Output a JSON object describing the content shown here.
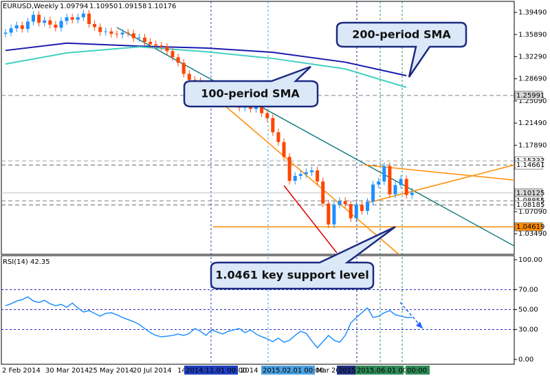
{
  "chart_data": [
    {
      "type": "candlestick",
      "title": "EURUSD,Weekly",
      "ohlc_labels": [
        "1.09794",
        "1.10950",
        "1.09158",
        "1.10176"
      ],
      "open": [
        1.36,
        1.362,
        1.369,
        1.374,
        1.368,
        1.38,
        1.391,
        1.378,
        1.382,
        1.375,
        1.37,
        1.381,
        1.387,
        1.383,
        1.387,
        1.393,
        1.376,
        1.371,
        1.363,
        1.364,
        1.36,
        1.359,
        1.362,
        1.361,
        1.353,
        1.354,
        1.347,
        1.343,
        1.341,
        1.339,
        1.332,
        1.322,
        1.313,
        1.295,
        1.285,
        1.283,
        1.262,
        1.267,
        1.276,
        1.269,
        1.268,
        1.251,
        1.253,
        1.24,
        1.244,
        1.238,
        1.247,
        1.231,
        1.223,
        1.2,
        1.184,
        1.16,
        1.121,
        1.129,
        1.132,
        1.135,
        1.138,
        1.12,
        1.084,
        1.05,
        1.082,
        1.088,
        1.083,
        1.06,
        1.082,
        1.072,
        1.087,
        1.115,
        1.12,
        1.145,
        1.099,
        1.114,
        1.124,
        1.09794
      ],
      "high": [
        1.368,
        1.375,
        1.38,
        1.38,
        1.386,
        1.397,
        1.397,
        1.388,
        1.388,
        1.381,
        1.387,
        1.393,
        1.393,
        1.393,
        1.399,
        1.399,
        1.382,
        1.377,
        1.37,
        1.37,
        1.366,
        1.368,
        1.368,
        1.367,
        1.36,
        1.36,
        1.353,
        1.349,
        1.347,
        1.345,
        1.338,
        1.328,
        1.319,
        1.301,
        1.291,
        1.289,
        1.273,
        1.282,
        1.282,
        1.275,
        1.274,
        1.259,
        1.259,
        1.25,
        1.25,
        1.253,
        1.253,
        1.237,
        1.229,
        1.206,
        1.19,
        1.166,
        1.135,
        1.138,
        1.141,
        1.144,
        1.144,
        1.126,
        1.09,
        1.088,
        1.094,
        1.094,
        1.089,
        1.088,
        1.088,
        1.093,
        1.121,
        1.126,
        1.151,
        1.151,
        1.12,
        1.13,
        1.13,
        1.1095
      ],
      "low": [
        1.354,
        1.356,
        1.363,
        1.362,
        1.362,
        1.374,
        1.372,
        1.372,
        1.369,
        1.364,
        1.364,
        1.375,
        1.377,
        1.377,
        1.381,
        1.37,
        1.365,
        1.357,
        1.357,
        1.354,
        1.353,
        1.353,
        1.355,
        1.347,
        1.347,
        1.341,
        1.337,
        1.335,
        1.333,
        1.326,
        1.316,
        1.307,
        1.289,
        1.279,
        1.277,
        1.256,
        1.256,
        1.261,
        1.263,
        1.262,
        1.245,
        1.245,
        1.234,
        1.234,
        1.232,
        1.232,
        1.225,
        1.217,
        1.194,
        1.178,
        1.154,
        1.115,
        1.115,
        1.123,
        1.126,
        1.129,
        1.114,
        1.078,
        1.044,
        1.044,
        1.076,
        1.077,
        1.054,
        1.054,
        1.066,
        1.066,
        1.081,
        1.109,
        1.114,
        1.093,
        1.093,
        1.108,
        1.092,
        1.09158
      ],
      "close": [
        1.362,
        1.369,
        1.374,
        1.368,
        1.38,
        1.391,
        1.378,
        1.382,
        1.375,
        1.37,
        1.381,
        1.387,
        1.383,
        1.387,
        1.393,
        1.376,
        1.371,
        1.363,
        1.364,
        1.36,
        1.359,
        1.362,
        1.361,
        1.353,
        1.354,
        1.347,
        1.343,
        1.341,
        1.339,
        1.332,
        1.322,
        1.313,
        1.295,
        1.285,
        1.283,
        1.262,
        1.267,
        1.276,
        1.269,
        1.268,
        1.251,
        1.253,
        1.24,
        1.244,
        1.238,
        1.247,
        1.231,
        1.223,
        1.2,
        1.184,
        1.16,
        1.121,
        1.129,
        1.132,
        1.135,
        1.138,
        1.12,
        1.084,
        1.05,
        1.082,
        1.088,
        1.083,
        1.06,
        1.082,
        1.072,
        1.087,
        1.115,
        1.12,
        1.145,
        1.099,
        1.114,
        1.124,
        1.098,
        1.10176
      ],
      "up_color": "#1e90ff",
      "down_color": "#ff4500",
      "ylim": [
        1.0015,
        1.4095
      ],
      "yticks": [
        {
          "value": 1.3949,
          "label": "1.39490"
        },
        {
          "value": 1.3589,
          "label": "1.35890"
        },
        {
          "value": 1.3229,
          "label": "1.32290"
        },
        {
          "value": 1.2869,
          "label": "1.28690"
        },
        {
          "value": 1.2509,
          "label": "1.25090"
        },
        {
          "value": 1.2149,
          "label": "1.21490"
        },
        {
          "value": 1.1789,
          "label": "1.17890"
        },
        {
          "value": 1.0709,
          "label": "1.07090"
        },
        {
          "value": 1.0349,
          "label": "1.03490"
        }
      ],
      "levels": [
        {
          "value": 1.25991,
          "color": "#808080",
          "label_fill": "#d8d8d8",
          "style": "dash"
        },
        {
          "value": 1.15332,
          "color": "#a0a0a0",
          "label_fill": "#ffffff",
          "style": "dash"
        },
        {
          "value": 1.14661,
          "color": "#606060",
          "label_fill": "#ffffff",
          "style": "dash"
        },
        {
          "value": 1.10125,
          "color": "#c0c0c0",
          "label_fill": "#d8d8d8",
          "style": "solid"
        },
        {
          "value": 1.08855,
          "color": "#808080",
          "label_fill": "#ffffff",
          "style": "dash"
        },
        {
          "value": 1.08185,
          "color": "#606060",
          "label_fill": "#ffffff",
          "style": "dash"
        },
        {
          "value": 1.04619,
          "color": "#ff8c00",
          "label_fill": "#ff8c00",
          "style": "solid"
        }
      ],
      "series": [
        {
          "name": "200-period SMA",
          "color": "#1a1ab0",
          "x": [
            0,
            11,
            24,
            36,
            48,
            61,
            72
          ],
          "values": [
            1.333,
            1.345,
            1.34,
            1.337,
            1.33,
            1.314,
            1.292
          ]
        },
        {
          "name": "100-period SMA",
          "color": "#40d0c0",
          "x": [
            0,
            11,
            24,
            36,
            48,
            61,
            72
          ],
          "values": [
            1.311,
            1.329,
            1.339,
            1.331,
            1.32,
            1.303,
            1.273
          ]
        }
      ],
      "annotation": "1.0461 key support level"
    },
    {
      "type": "line",
      "title": "RSI(14)",
      "color": "#1e90ff",
      "values": [
        53.8,
        55.9,
        58.6,
        60.0,
        62.8,
        58.6,
        57.2,
        59.3,
        55.9,
        53.8,
        55.2,
        52.4,
        56.6,
        51.7,
        47.6,
        49.0,
        46.2,
        43.4,
        46.2,
        46.9,
        44.8,
        42.1,
        40.0,
        37.9,
        35.2,
        31.0,
        26.9,
        24.1,
        22.8,
        23.4,
        24.1,
        25.5,
        24.1,
        26.2,
        31.0,
        28.3,
        24.1,
        29.7,
        27.6,
        25.5,
        28.3,
        29.7,
        31.0,
        26.9,
        29.7,
        25.5,
        22.8,
        20.7,
        17.9,
        21.4,
        17.2,
        19.3,
        24.1,
        28.3,
        26.2,
        18.6,
        11.7,
        17.9,
        24.1,
        19.3,
        17.2,
        24.1,
        36.6,
        42.1,
        46.9,
        51.7,
        42.1,
        43.4,
        46.9,
        49.0,
        44.8,
        43.4,
        42.1,
        42.35
      ],
      "ylim": [
        -4.8,
        104.1
      ],
      "yticks": [
        {
          "value": 100,
          "label": "100.00"
        },
        {
          "value": 70,
          "label": "70.00"
        },
        {
          "value": 50,
          "label": "50.00"
        },
        {
          "value": 30,
          "label": "30.00"
        },
        {
          "value": 0,
          "label": "0.00"
        }
      ],
      "levels": [
        70,
        50,
        30
      ],
      "x_labels": [
        "2 Feb 2014",
        "30 Mar 2014",
        "25 May 2014",
        "20 Jul 2014",
        "14",
        "2014.11.01 00:00",
        "2014",
        "2015.02.01 00:00",
        "Mar 201",
        "2015",
        "2015.06.01 00:00",
        "00:00"
      ]
    }
  ]
}
